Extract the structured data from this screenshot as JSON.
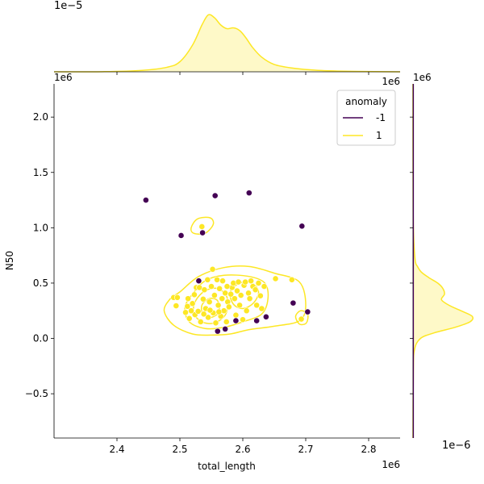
{
  "chart_data": {
    "type": "scatter",
    "xlabel": "total_length",
    "ylabel": "N50",
    "x_offset_label": "1e6",
    "y_offset_label": "1e6",
    "top_marginal_offset_label": "1e−5",
    "top_marginal_x_offset_label": "1e6",
    "right_marginal_offset_label": "1e−6",
    "right_marginal_y_offset_label": "1e6",
    "xlim": [
      2.3,
      2.85
    ],
    "ylim": [
      -0.9,
      2.3
    ],
    "xticks": [
      2.4,
      2.5,
      2.6,
      2.7,
      2.8
    ],
    "xtick_labels": [
      "2.4",
      "2.5",
      "2.6",
      "2.7",
      "2.8"
    ],
    "yticks": [
      -0.5,
      0.0,
      0.5,
      1.0,
      1.5,
      2.0
    ],
    "ytick_labels": [
      "−0.5",
      "0.0",
      "0.5",
      "1.0",
      "1.5",
      "2.0"
    ],
    "grid": false,
    "legend": {
      "title": "anomaly",
      "placement": "top-right",
      "entries": [
        {
          "label": "-1",
          "color": "#440154"
        },
        {
          "label": "1",
          "color": "#fde725"
        }
      ]
    },
    "series": [
      {
        "name": "-1",
        "color": "#440154",
        "points": [
          [
            2.446,
            1.25
          ],
          [
            2.556,
            1.29
          ],
          [
            2.61,
            1.315
          ],
          [
            2.694,
            1.015
          ],
          [
            2.502,
            0.93
          ],
          [
            2.536,
            0.955
          ],
          [
            2.53,
            0.52
          ],
          [
            2.68,
            0.32
          ],
          [
            2.703,
            0.24
          ],
          [
            2.637,
            0.195
          ],
          [
            2.622,
            0.16
          ],
          [
            2.589,
            0.16
          ],
          [
            2.572,
            0.085
          ],
          [
            2.56,
            0.065
          ]
        ]
      },
      {
        "name": "1",
        "color": "#fde725",
        "points": [
          [
            2.49,
            0.37
          ],
          [
            2.496,
            0.37
          ],
          [
            2.494,
            0.295
          ],
          [
            2.509,
            0.235
          ],
          [
            2.512,
            0.29
          ],
          [
            2.515,
            0.18
          ],
          [
            2.52,
            0.315
          ],
          [
            2.523,
            0.395
          ],
          [
            2.526,
            0.46
          ],
          [
            2.524,
            0.215
          ],
          [
            2.529,
            0.245
          ],
          [
            2.531,
            0.46
          ],
          [
            2.533,
            0.15
          ],
          [
            2.535,
            1.01
          ],
          [
            2.537,
            0.355
          ],
          [
            2.539,
            0.44
          ],
          [
            2.541,
            0.27
          ],
          [
            2.544,
            0.53
          ],
          [
            2.545,
            0.19
          ],
          [
            2.547,
            0.33
          ],
          [
            2.55,
            0.47
          ],
          [
            2.552,
            0.625
          ],
          [
            2.553,
            0.23
          ],
          [
            2.555,
            0.39
          ],
          [
            2.557,
            0.14
          ],
          [
            2.559,
            0.53
          ],
          [
            2.561,
            0.3
          ],
          [
            2.563,
            0.45
          ],
          [
            2.565,
            0.2
          ],
          [
            2.567,
            0.36
          ],
          [
            2.568,
            0.52
          ],
          [
            2.57,
            0.25
          ],
          [
            2.572,
            0.41
          ],
          [
            2.574,
            0.15
          ],
          [
            2.576,
            0.33
          ],
          [
            2.578,
            0.285
          ],
          [
            2.581,
            0.4
          ],
          [
            2.583,
            0.46
          ],
          [
            2.585,
            0.5
          ],
          [
            2.587,
            0.36
          ],
          [
            2.589,
            0.21
          ],
          [
            2.591,
            0.43
          ],
          [
            2.593,
            0.51
          ],
          [
            2.595,
            0.3
          ],
          [
            2.597,
            0.39
          ],
          [
            2.6,
            0.17
          ],
          [
            2.602,
            0.48
          ],
          [
            2.604,
            0.51
          ],
          [
            2.606,
            0.25
          ],
          [
            2.609,
            0.41
          ],
          [
            2.611,
            0.36
          ],
          [
            2.613,
            0.52
          ],
          [
            2.616,
            0.47
          ],
          [
            2.62,
            0.44
          ],
          [
            2.622,
            0.3
          ],
          [
            2.625,
            0.5
          ],
          [
            2.628,
            0.385
          ],
          [
            2.63,
            0.27
          ],
          [
            2.634,
            0.47
          ],
          [
            2.652,
            0.54
          ],
          [
            2.678,
            0.53
          ],
          [
            2.693,
            0.175
          ],
          [
            2.513,
            0.36
          ],
          [
            2.538,
            0.22
          ],
          [
            2.548,
            0.255
          ],
          [
            2.562,
            0.24
          ],
          [
            2.518,
            0.25
          ],
          [
            2.575,
            0.47
          ]
        ]
      }
    ],
    "kde_contours": {
      "series": "1",
      "color": "#fde725",
      "levels": [
        [
          [
            2.5,
            0.42
          ],
          [
            2.53,
            0.56
          ],
          [
            2.57,
            0.64
          ],
          [
            2.61,
            0.65
          ],
          [
            2.65,
            0.59
          ],
          [
            2.69,
            0.51
          ],
          [
            2.7,
            0.3
          ],
          [
            2.69,
            0.16
          ],
          [
            2.65,
            0.11
          ],
          [
            2.61,
            0.08
          ],
          [
            2.58,
            0.04
          ],
          [
            2.55,
            0.03
          ],
          [
            2.52,
            0.04
          ],
          [
            2.49,
            0.12
          ],
          [
            2.475,
            0.25
          ],
          [
            2.485,
            0.36
          ]
        ],
        [
          [
            2.52,
            0.4
          ],
          [
            2.54,
            0.52
          ],
          [
            2.57,
            0.57
          ],
          [
            2.61,
            0.56
          ],
          [
            2.635,
            0.5
          ],
          [
            2.64,
            0.36
          ],
          [
            2.63,
            0.22
          ],
          [
            2.6,
            0.15
          ],
          [
            2.57,
            0.1
          ],
          [
            2.54,
            0.09
          ],
          [
            2.515,
            0.15
          ],
          [
            2.508,
            0.28
          ]
        ],
        [
          [
            2.525,
            0.34
          ],
          [
            2.54,
            0.43
          ],
          [
            2.56,
            0.45
          ],
          [
            2.575,
            0.37
          ],
          [
            2.573,
            0.22
          ],
          [
            2.555,
            0.14
          ],
          [
            2.535,
            0.15
          ],
          [
            2.522,
            0.23
          ]
        ],
        [
          [
            2.58,
            0.42
          ],
          [
            2.595,
            0.5
          ],
          [
            2.615,
            0.5
          ],
          [
            2.625,
            0.42
          ],
          [
            2.617,
            0.32
          ],
          [
            2.6,
            0.27
          ],
          [
            2.585,
            0.31
          ]
        ],
        [
          [
            2.535,
            0.3
          ],
          [
            2.547,
            0.36
          ],
          [
            2.56,
            0.34
          ],
          [
            2.562,
            0.24
          ],
          [
            2.55,
            0.19
          ],
          [
            2.537,
            0.21
          ]
        ],
        [
          [
            2.518,
            1.0
          ],
          [
            2.528,
            1.08
          ],
          [
            2.548,
            1.09
          ],
          [
            2.553,
            1.03
          ],
          [
            2.54,
            0.95
          ],
          [
            2.522,
            0.95
          ]
        ],
        [
          [
            2.684,
            0.2
          ],
          [
            2.692,
            0.25
          ],
          [
            2.703,
            0.22
          ],
          [
            2.701,
            0.14
          ],
          [
            2.69,
            0.13
          ]
        ]
      ]
    },
    "top_marginal": {
      "x": [
        2.3,
        2.38,
        2.44,
        2.48,
        2.5,
        2.52,
        2.535,
        2.545,
        2.555,
        2.565,
        2.575,
        2.585,
        2.595,
        2.605,
        2.615,
        2.63,
        2.65,
        2.68,
        2.72,
        2.78,
        2.85
      ],
      "density": [
        0.0,
        0.01,
        0.08,
        0.25,
        0.55,
        1.45,
        2.55,
        3.1,
        2.95,
        2.55,
        2.35,
        2.4,
        2.25,
        1.85,
        1.35,
        0.8,
        0.4,
        0.2,
        0.08,
        0.02,
        0.0
      ],
      "ylim": [
        0,
        3.3
      ]
    },
    "right_marginal": {
      "y": [
        -0.9,
        -0.3,
        -0.1,
        0.0,
        0.05,
        0.1,
        0.15,
        0.2,
        0.25,
        0.3,
        0.35,
        0.4,
        0.45,
        0.5,
        0.55,
        0.6,
        0.65,
        0.7,
        0.9,
        1.2,
        2.3
      ],
      "density": [
        0.0,
        0.02,
        0.1,
        0.5,
        1.4,
        2.8,
        3.8,
        3.95,
        3.2,
        2.4,
        1.9,
        2.1,
        2.0,
        1.65,
        1.05,
        0.55,
        0.3,
        0.15,
        0.05,
        0.01,
        0.0
      ],
      "xlim": [
        0,
        4.2
      ]
    }
  }
}
